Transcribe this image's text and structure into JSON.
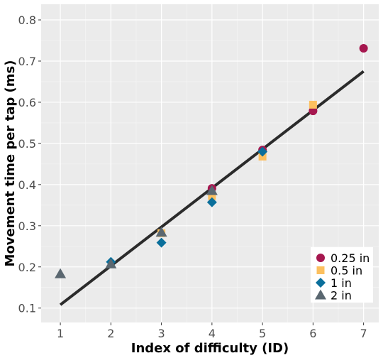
{
  "chart_data": {
    "type": "scatter",
    "xlabel": "Index of difficulty (ID)",
    "ylabel": "Movement time per tap (ms)",
    "xlim": [
      0.62,
      7.3
    ],
    "ylim": [
      0.065,
      0.838
    ],
    "x_ticks": [
      1,
      2,
      3,
      4,
      5,
      6,
      7
    ],
    "y_ticks": [
      0.1,
      0.2,
      0.3,
      0.4,
      0.5,
      0.6,
      0.7,
      0.8
    ],
    "x_tick_labels": [
      "1",
      "2",
      "3",
      "4",
      "5",
      "6",
      "7"
    ],
    "y_tick_labels": [
      "0.1",
      "0.2",
      "0.3",
      "0.4",
      "0.5",
      "0.6",
      "0.7",
      "0.8"
    ],
    "grid": true,
    "legend_position": "bottom-right",
    "series": [
      {
        "name": "0.25 in",
        "marker": "circle",
        "color": "#a6174f",
        "points": [
          [
            4,
            0.391
          ],
          [
            5,
            0.484
          ],
          [
            6,
            0.579
          ],
          [
            7,
            0.731
          ]
        ]
      },
      {
        "name": "0.5 in",
        "marker": "square",
        "color": "#fcc05f",
        "points": [
          [
            3,
            0.282
          ],
          [
            4,
            0.372
          ],
          [
            5,
            0.468
          ],
          [
            6,
            0.594
          ]
        ]
      },
      {
        "name": "1 in",
        "marker": "diamond",
        "color": "#0a6f9b",
        "points": [
          [
            2,
            0.212
          ],
          [
            3,
            0.259
          ],
          [
            4,
            0.357
          ],
          [
            5,
            0.48
          ]
        ]
      },
      {
        "name": "2 in",
        "marker": "triangle",
        "color": "#5a6770",
        "points": [
          [
            1,
            0.183
          ],
          [
            2,
            0.207
          ],
          [
            3,
            0.284
          ],
          [
            4,
            0.385
          ]
        ]
      }
    ],
    "fit_line": {
      "color": "#2b2b2b",
      "x": [
        1,
        7
      ],
      "y": [
        0.108,
        0.675
      ]
    }
  }
}
